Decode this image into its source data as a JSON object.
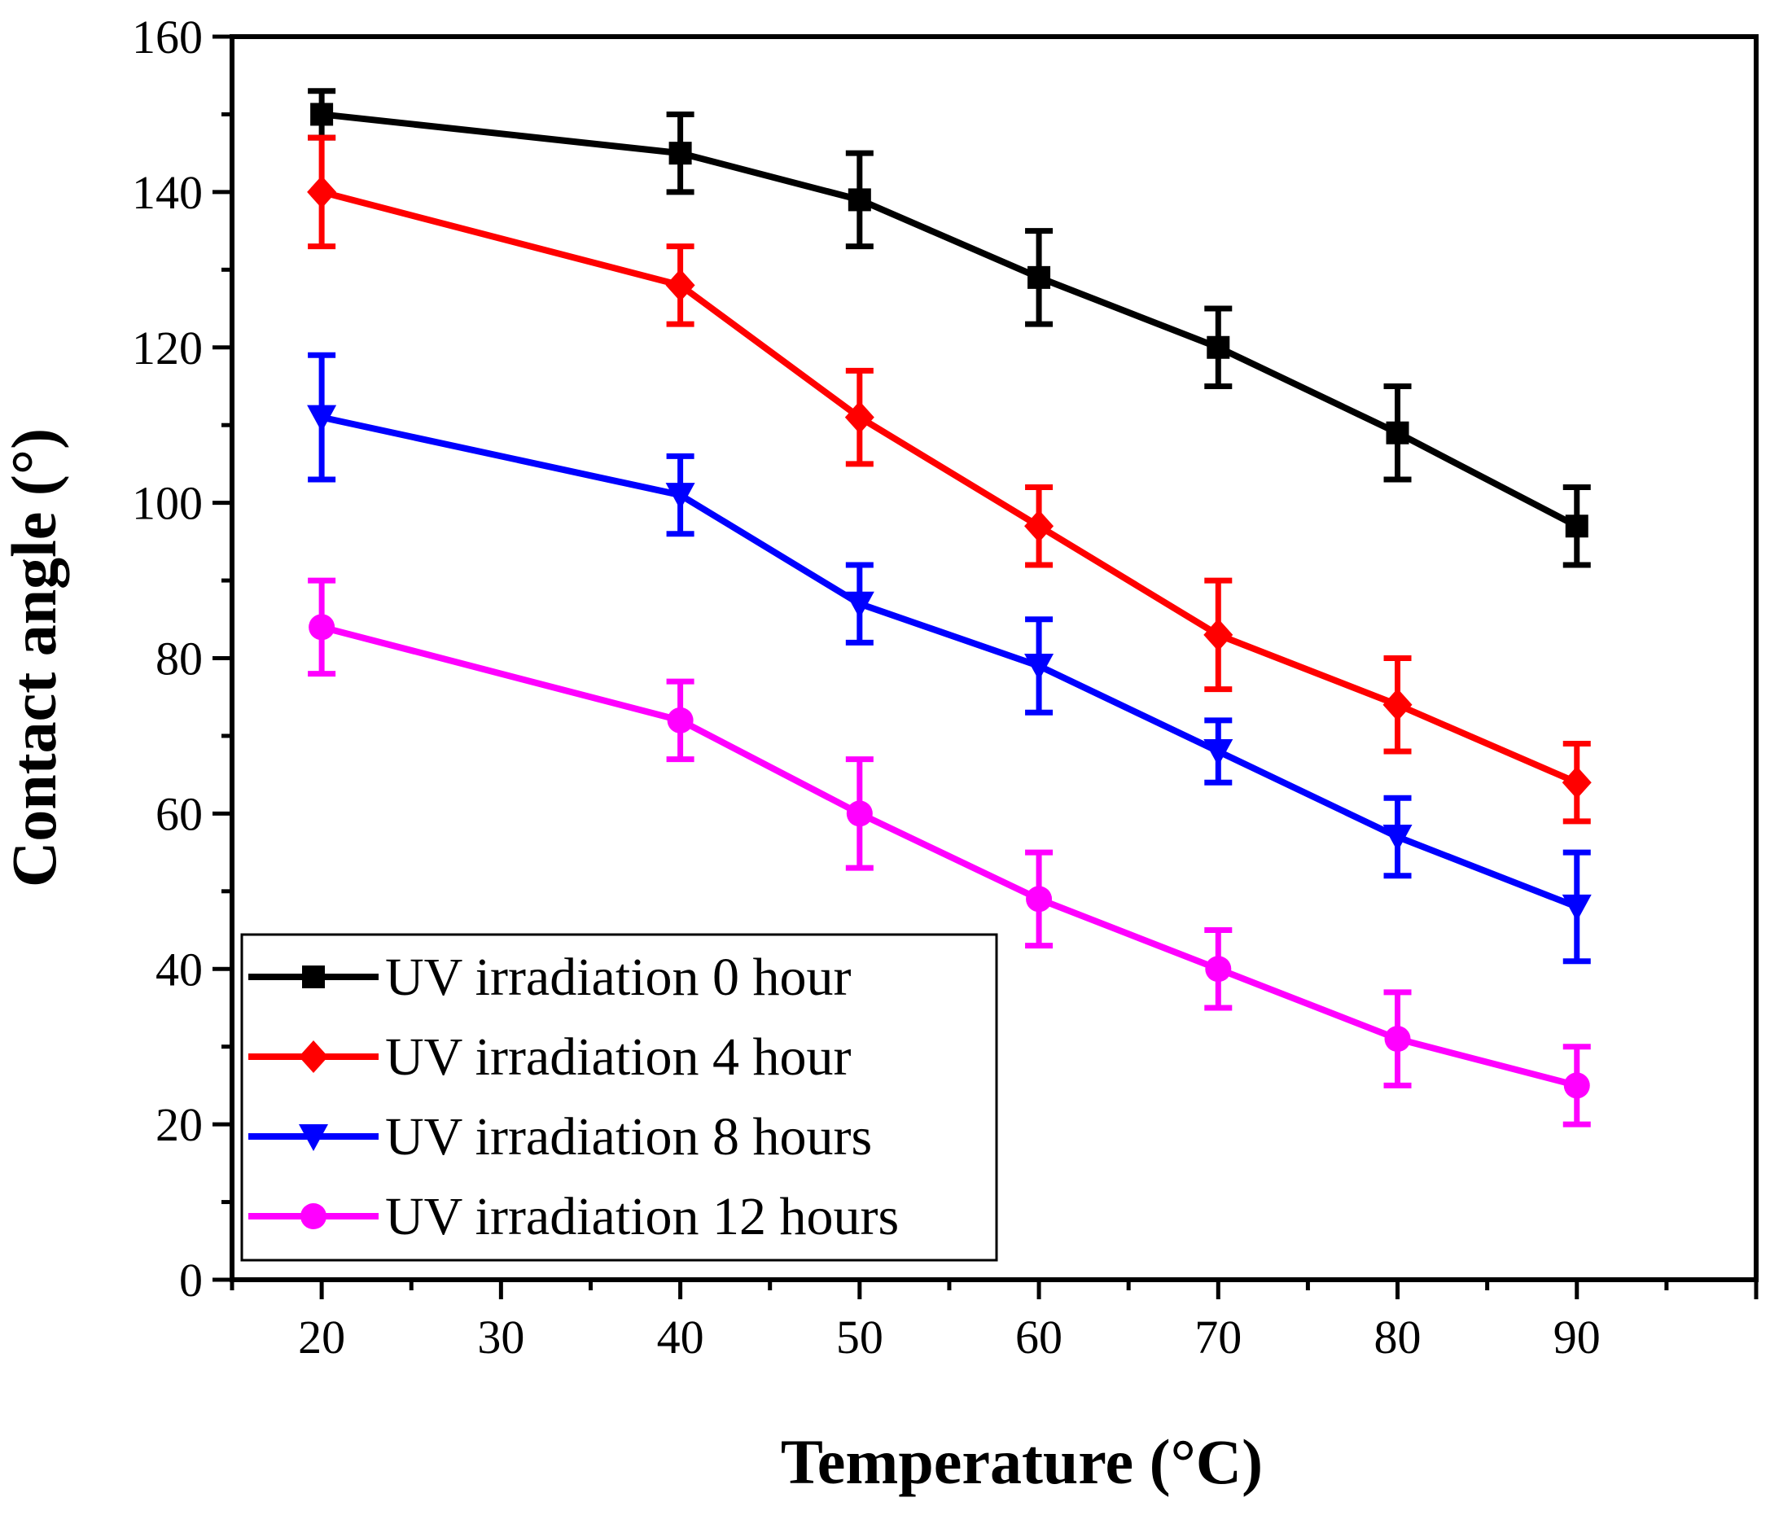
{
  "chart_data": {
    "type": "line",
    "title": "",
    "xlabel": "Temperature (°C)",
    "ylabel": "Contact angle (°)",
    "xlim": [
      15,
      100
    ],
    "ylim": [
      0,
      160
    ],
    "xticks": [
      20,
      30,
      40,
      50,
      60,
      70,
      80,
      90
    ],
    "yticks": [
      0,
      20,
      40,
      60,
      80,
      100,
      120,
      140,
      160
    ],
    "x": [
      20,
      40,
      50,
      60,
      70,
      80,
      90
    ],
    "legend_position": "bottom-left",
    "series": [
      {
        "name": "UV irradiation 0 hour",
        "color": "#000000",
        "marker": "square",
        "values": [
          150,
          145,
          139,
          129,
          120,
          109,
          97
        ],
        "errors": [
          3,
          5,
          6,
          6,
          5,
          6,
          5
        ]
      },
      {
        "name": "UV irradiation 4 hour",
        "color": "#ff0000",
        "marker": "diamond",
        "values": [
          140,
          128,
          111,
          97,
          83,
          74,
          64
        ],
        "errors": [
          7,
          5,
          6,
          5,
          7,
          6,
          5
        ]
      },
      {
        "name": "UV irradiation 8 hours",
        "color": "#0000ff",
        "marker": "triangle-down",
        "values": [
          111,
          101,
          87,
          79,
          68,
          57,
          48
        ],
        "errors": [
          8,
          5,
          5,
          6,
          4,
          5,
          7
        ]
      },
      {
        "name": "UV irradiation 12 hours",
        "color": "#ff00ff",
        "marker": "circle",
        "values": [
          84,
          72,
          60,
          49,
          40,
          31,
          25
        ],
        "errors": [
          6,
          5,
          7,
          6,
          5,
          6,
          5
        ]
      }
    ]
  }
}
